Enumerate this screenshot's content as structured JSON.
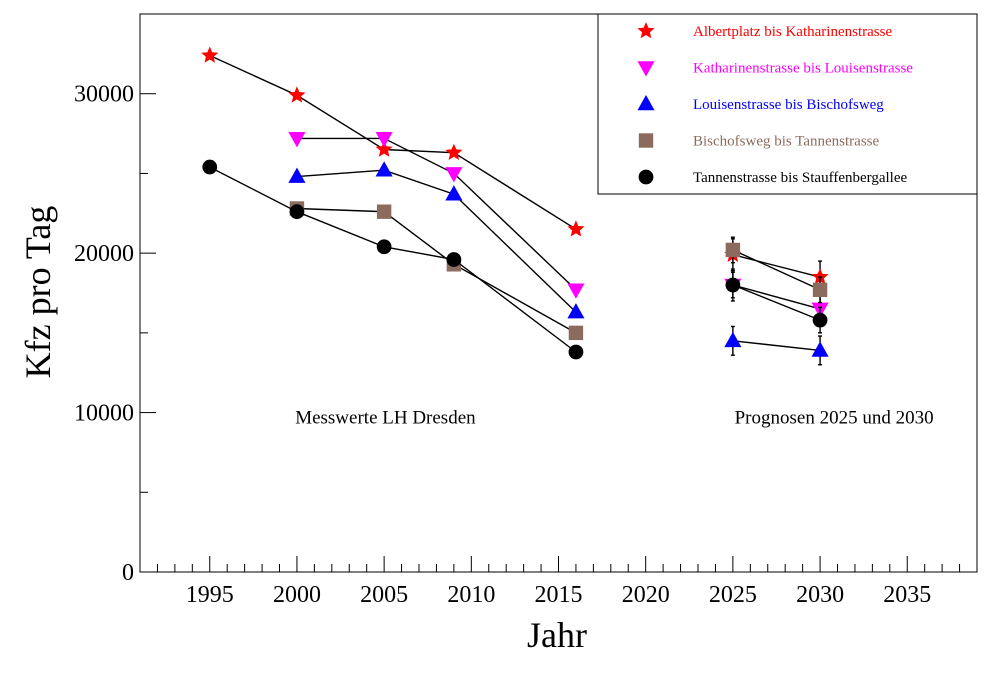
{
  "chart_data": {
    "type": "scatter",
    "title": "",
    "xlabel": "Jahr",
    "ylabel": "Kfz pro Tag",
    "xlim": [
      1991,
      2039
    ],
    "ylim": [
      0,
      35000
    ],
    "x_ticks": [
      1995,
      2000,
      2005,
      2010,
      2015,
      2020,
      2025,
      2030,
      2035
    ],
    "y_ticks": [
      0,
      10000,
      20000,
      30000
    ],
    "grid": false,
    "legend_position": "top-right",
    "annotations": [
      {
        "text": "Messwerte LH Dresden",
        "x": 1999.9,
        "y": 9300
      },
      {
        "text": "Prognosen 2025 und 2030",
        "x": 2025.1,
        "y": 9300
      }
    ],
    "series": [
      {
        "name": "Albertplatz bis Katharinenstrasse",
        "color": "#ff0000",
        "marker": "star",
        "measured": [
          [
            1995,
            32400
          ],
          [
            2000,
            29900
          ],
          [
            2005,
            26500
          ],
          [
            2009,
            26300
          ],
          [
            2016,
            21500
          ]
        ],
        "forecast": [
          [
            2025,
            19900,
            1000
          ],
          [
            2030,
            18500,
            1000
          ]
        ]
      },
      {
        "name": "Katharinenstrasse bis Louisenstrasse",
        "color": "#ff00ff",
        "marker": "triangle-down",
        "measured": [
          [
            2000,
            27200
          ],
          [
            2005,
            27200
          ],
          [
            2009,
            25000
          ],
          [
            2016,
            17700
          ]
        ],
        "forecast": [
          [
            2025,
            18000,
            1000
          ],
          [
            2030,
            16500,
            1000
          ]
        ]
      },
      {
        "name": "Louisenstrasse bis Bischofsweg",
        "color": "#0000ff",
        "marker": "triangle-up",
        "measured": [
          [
            2000,
            24800
          ],
          [
            2005,
            25200
          ],
          [
            2009,
            23700
          ],
          [
            2016,
            16300
          ]
        ],
        "forecast": [
          [
            2025,
            14500,
            900
          ],
          [
            2030,
            13900,
            900
          ]
        ]
      },
      {
        "name": "Bischofsweg bis Tannenstrasse",
        "color": "#8b6b5e",
        "marker": "square",
        "measured": [
          [
            2000,
            22800
          ],
          [
            2005,
            22600
          ],
          [
            2009,
            19300
          ],
          [
            2016,
            15000
          ]
        ],
        "forecast": [
          [
            2025,
            20200,
            800
          ],
          [
            2030,
            17700,
            800
          ]
        ]
      },
      {
        "name": "Tannenstrasse bis Stauffenbergallee",
        "color": "#000000",
        "marker": "circle",
        "measured": [
          [
            1995,
            25400
          ],
          [
            2000,
            22600
          ],
          [
            2005,
            20400
          ],
          [
            2009,
            19600
          ],
          [
            2016,
            13800
          ]
        ],
        "forecast": [
          [
            2025,
            18000,
            800
          ],
          [
            2030,
            15800,
            800
          ]
        ]
      }
    ]
  }
}
